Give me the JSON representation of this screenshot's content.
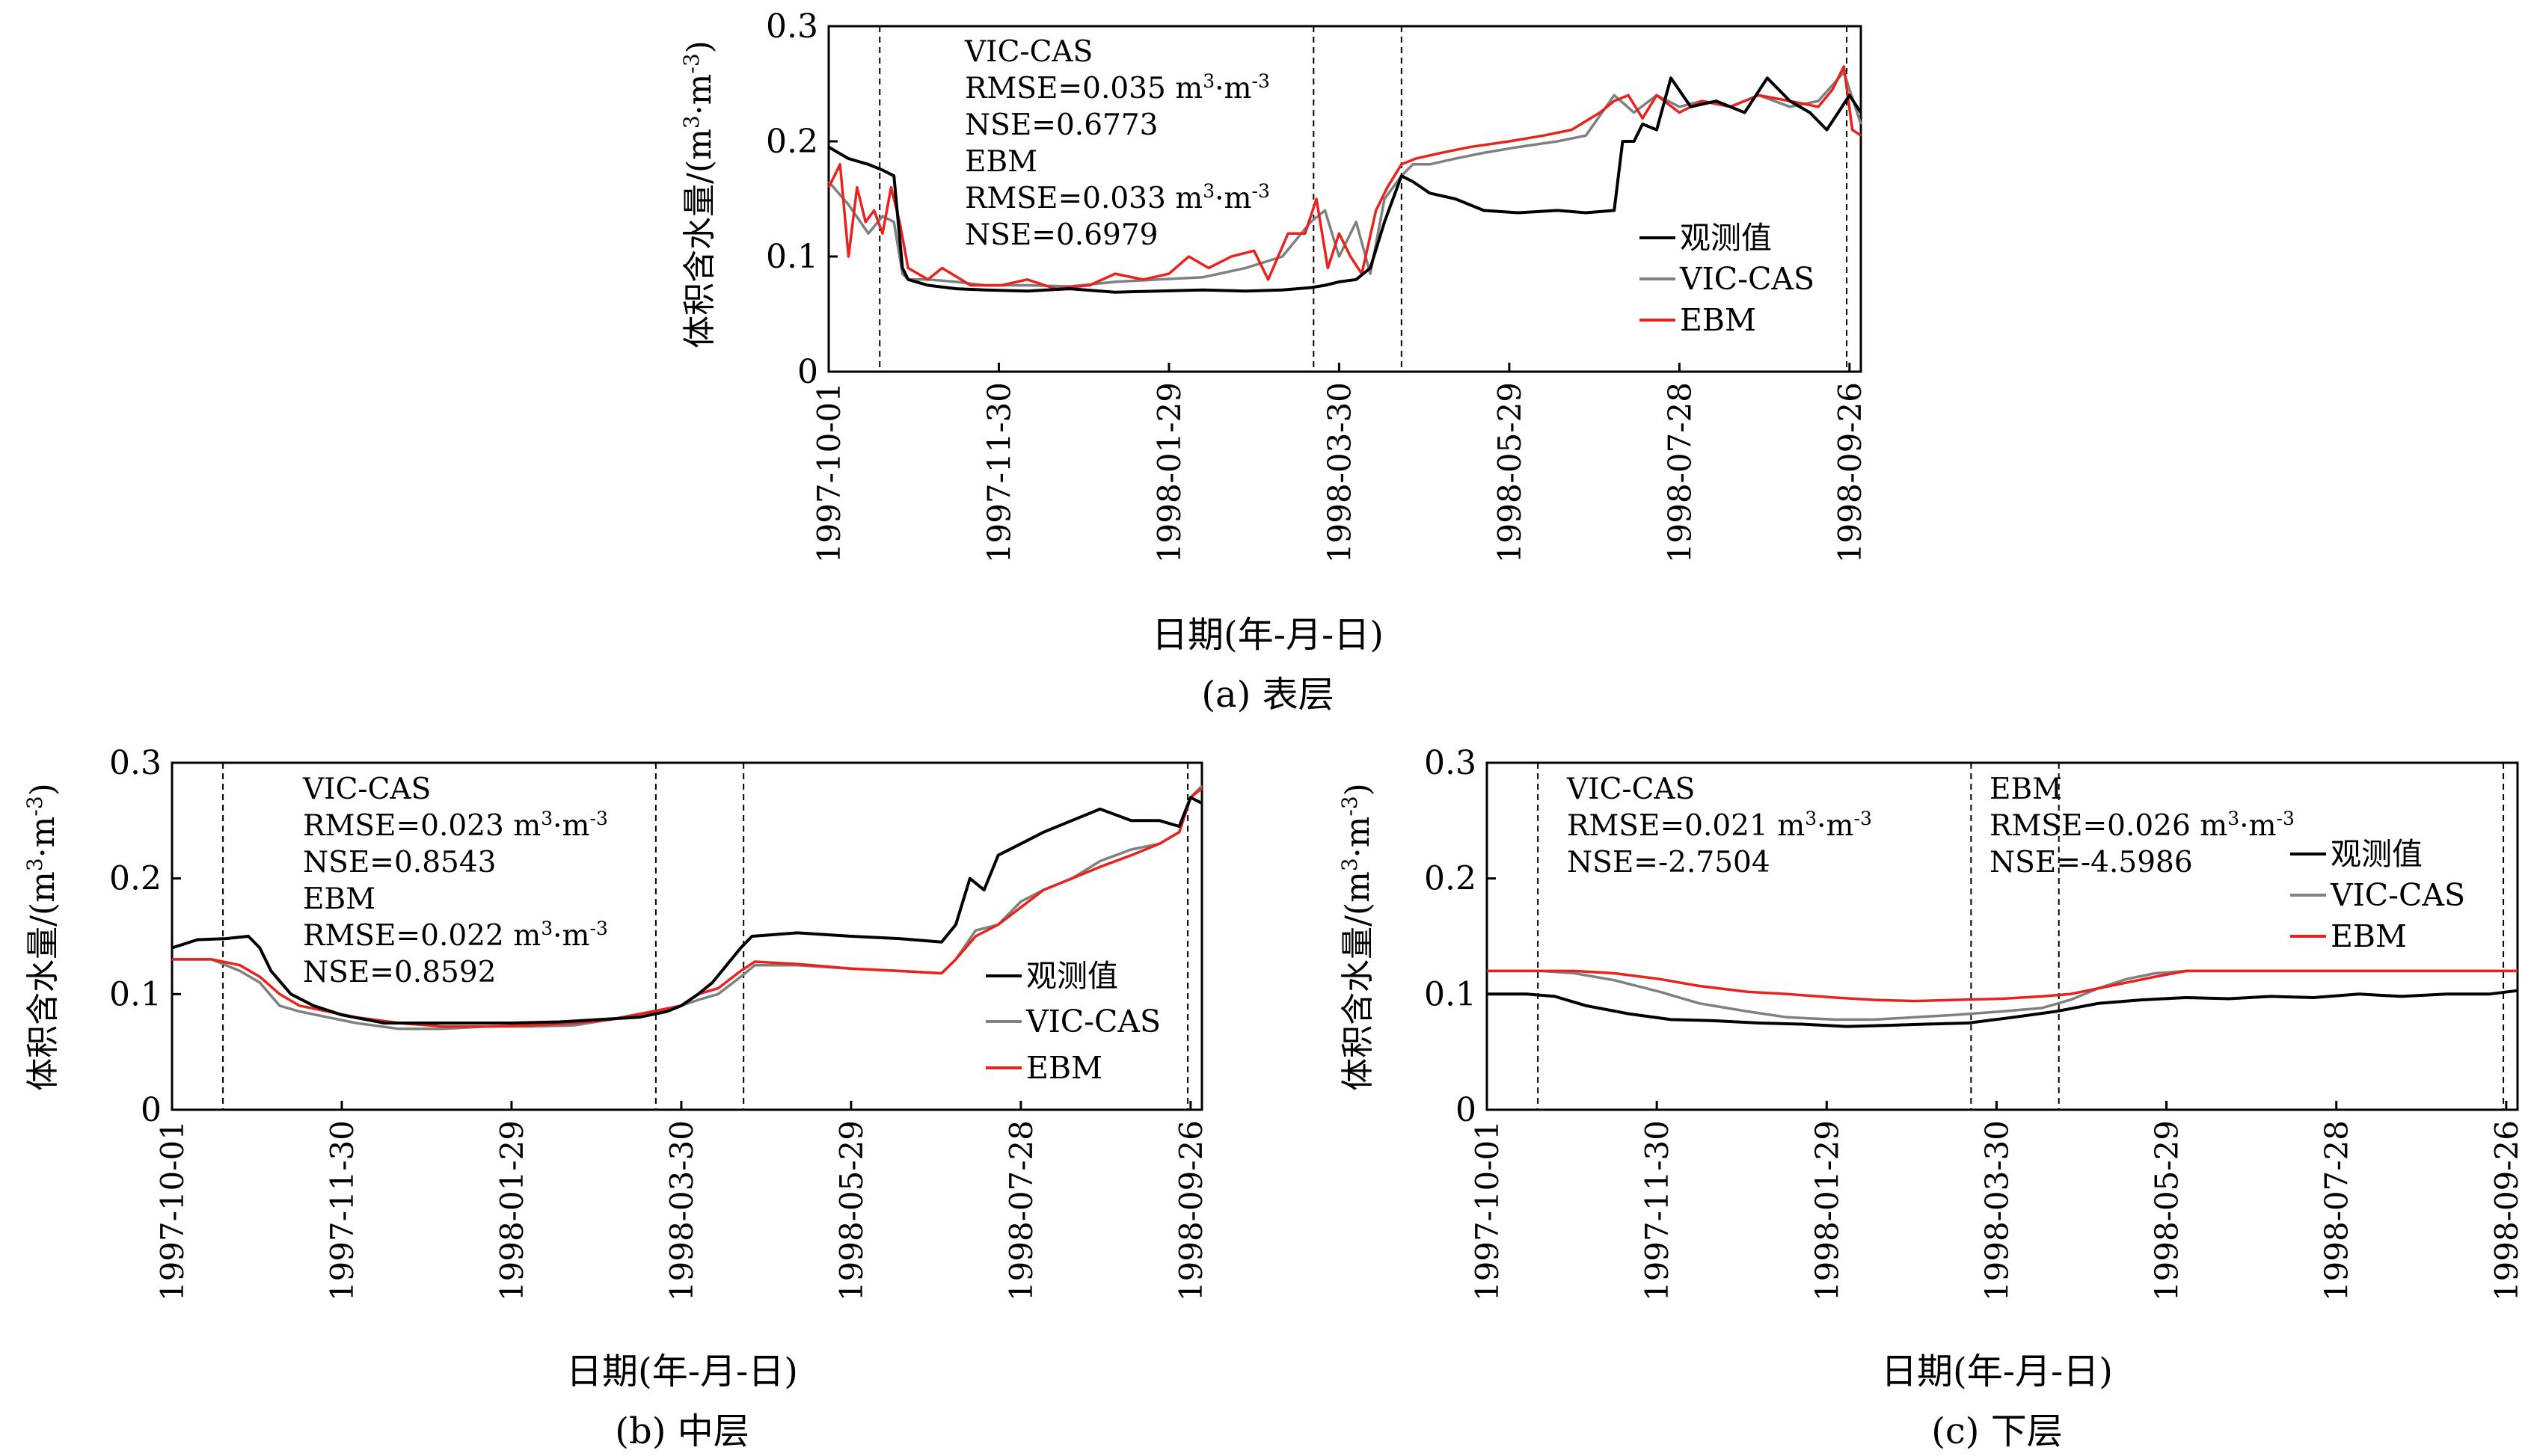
{
  "common": {
    "ylabel_prefix": "体积含水量/(m",
    "ylabel_sup1": "3",
    "ylabel_mid": "·m",
    "ylabel_sup2": "-3",
    "ylabel_suffix": ")",
    "xlabel": "日期(年-月-日)",
    "x_ticks": [
      "1997-10-01",
      "1997-11-30",
      "1998-01-29",
      "1998-03-30",
      "1998-05-29",
      "1998-07-28",
      "1998-09-26"
    ],
    "y_ticks": [
      "0",
      "0.1",
      "0.2",
      "0.3"
    ],
    "legend": [
      "观测值",
      "VIC-CAS",
      "EBM"
    ],
    "colors": {
      "obs": "#000000",
      "vic": "#808080",
      "ebm": "#e8231e"
    }
  },
  "panels": [
    {
      "caption": "(a) 表层",
      "stats": [
        {
          "model": "VIC-CAS",
          "rmse_prefix": "RMSE=0.035 m",
          "sup1": "3",
          "mid": "·m",
          "sup2": "-3",
          "nse": "NSE=0.6773"
        },
        {
          "model": "EBM",
          "rmse_prefix": "RMSE=0.033 m",
          "sup1": "3",
          "mid": "·m",
          "sup2": "-3",
          "nse": "NSE=0.6979"
        }
      ]
    },
    {
      "caption": "(b) 中层",
      "stats": [
        {
          "model": "VIC-CAS",
          "rmse_prefix": "RMSE=0.023 m",
          "sup1": "3",
          "mid": "·m",
          "sup2": "-3",
          "nse": "NSE=0.8543"
        },
        {
          "model": "EBM",
          "rmse_prefix": "RMSE=0.022 m",
          "sup1": "3",
          "mid": "·m",
          "sup2": "-3",
          "nse": "NSE=0.8592"
        }
      ]
    },
    {
      "caption": "(c) 下层",
      "stats": [
        {
          "model": "VIC-CAS",
          "rmse_prefix": "RMSE=0.021 m",
          "sup1": "3",
          "mid": "·m",
          "sup2": "-3",
          "nse": "NSE=-2.7504"
        },
        {
          "model": "EBM",
          "rmse_prefix": "RMSE=0.026 m",
          "sup1": "3",
          "mid": "·m",
          "sup2": "-3",
          "nse": "NSE=-4.5986"
        }
      ]
    }
  ],
  "chart_data": [
    {
      "type": "line",
      "panel": "(a) 表层",
      "x_unit": "date",
      "xlim": [
        "1997-10-01",
        "1998-09-30"
      ],
      "ylim": [
        0,
        0.3
      ],
      "vlines": [
        "1997-10-19",
        "1998-03-21",
        "1998-04-21",
        "1998-09-25"
      ],
      "series": [
        {
          "name": "观测值",
          "x": [
            "1997-10-01",
            "1997-10-08",
            "1997-10-15",
            "1997-10-20",
            "1997-10-24",
            "1997-10-27",
            "1997-10-29",
            "1997-11-05",
            "1997-11-15",
            "1997-11-25",
            "1997-12-10",
            "1997-12-25",
            "1998-01-10",
            "1998-01-25",
            "1998-02-10",
            "1998-02-25",
            "1998-03-10",
            "1998-03-20",
            "1998-03-25",
            "1998-03-30",
            "1998-04-05",
            "1998-04-10",
            "1998-04-15",
            "1998-04-21",
            "1998-04-25",
            "1998-05-01",
            "1998-05-10",
            "1998-05-20",
            "1998-06-01",
            "1998-06-15",
            "1998-06-25",
            "1998-07-05",
            "1998-07-08",
            "1998-07-12",
            "1998-07-15",
            "1998-07-20",
            "1998-07-25",
            "1998-08-01",
            "1998-08-10",
            "1998-08-20",
            "1998-08-28",
            "1998-09-05",
            "1998-09-12",
            "1998-09-18",
            "1998-09-22",
            "1998-09-26",
            "1998-09-30"
          ],
          "values": [
            0.195,
            0.185,
            0.18,
            0.175,
            0.17,
            0.09,
            0.08,
            0.075,
            0.072,
            0.071,
            0.07,
            0.072,
            0.069,
            0.07,
            0.071,
            0.07,
            0.071,
            0.073,
            0.075,
            0.078,
            0.08,
            0.09,
            0.13,
            0.17,
            0.165,
            0.155,
            0.15,
            0.14,
            0.138,
            0.14,
            0.138,
            0.14,
            0.2,
            0.2,
            0.215,
            0.21,
            0.255,
            0.23,
            0.235,
            0.225,
            0.255,
            0.235,
            0.225,
            0.21,
            0.225,
            0.24,
            0.225
          ]
        },
        {
          "name": "VIC-CAS",
          "x": [
            "1997-10-01",
            "1997-10-08",
            "1997-10-15",
            "1997-10-20",
            "1997-10-24",
            "1997-10-27",
            "1997-10-29",
            "1997-11-05",
            "1997-11-15",
            "1997-11-25",
            "1997-12-10",
            "1997-12-25",
            "1998-01-10",
            "1998-01-25",
            "1998-02-10",
            "1998-02-25",
            "1998-03-10",
            "1998-03-20",
            "1998-03-25",
            "1998-03-30",
            "1998-04-05",
            "1998-04-10",
            "1998-04-15",
            "1998-04-21",
            "1998-04-25",
            "1998-05-01",
            "1998-05-10",
            "1998-05-20",
            "1998-06-01",
            "1998-06-15",
            "1998-06-25",
            "1998-07-05",
            "1998-07-12",
            "1998-07-20",
            "1998-07-28",
            "1998-08-05",
            "1998-08-15",
            "1998-08-25",
            "1998-09-05",
            "1998-09-15",
            "1998-09-24",
            "1998-09-30"
          ],
          "values": [
            0.165,
            0.145,
            0.12,
            0.135,
            0.13,
            0.085,
            0.08,
            0.08,
            0.078,
            0.075,
            0.075,
            0.074,
            0.078,
            0.08,
            0.082,
            0.09,
            0.1,
            0.13,
            0.14,
            0.1,
            0.13,
            0.085,
            0.15,
            0.17,
            0.18,
            0.18,
            0.185,
            0.19,
            0.195,
            0.2,
            0.205,
            0.24,
            0.225,
            0.24,
            0.23,
            0.235,
            0.23,
            0.24,
            0.23,
            0.235,
            0.26,
            0.215
          ]
        },
        {
          "name": "EBM",
          "x": [
            "1997-10-01",
            "1997-10-05",
            "1997-10-08",
            "1997-10-11",
            "1997-10-14",
            "1997-10-17",
            "1997-10-20",
            "1997-10-23",
            "1997-10-26",
            "1997-10-29",
            "1997-11-05",
            "1997-11-10",
            "1997-11-20",
            "1997-12-01",
            "1997-12-10",
            "1997-12-20",
            "1998-01-01",
            "1998-01-10",
            "1998-01-20",
            "1998-01-29",
            "1998-02-05",
            "1998-02-12",
            "1998-02-20",
            "1998-02-28",
            "1998-03-05",
            "1998-03-12",
            "1998-03-18",
            "1998-03-22",
            "1998-03-26",
            "1998-03-30",
            "1998-04-03",
            "1998-04-07",
            "1998-04-12",
            "1998-04-16",
            "1998-04-21",
            "1998-04-26",
            "1998-05-05",
            "1998-05-15",
            "1998-05-29",
            "1998-06-10",
            "1998-06-20",
            "1998-06-30",
            "1998-07-05",
            "1998-07-10",
            "1998-07-15",
            "1998-07-20",
            "1998-07-28",
            "1998-08-05",
            "1998-08-15",
            "1998-08-25",
            "1998-09-05",
            "1998-09-15",
            "1998-09-20",
            "1998-09-24",
            "1998-09-27",
            "1998-09-30"
          ],
          "values": [
            0.16,
            0.18,
            0.1,
            0.16,
            0.13,
            0.14,
            0.12,
            0.16,
            0.13,
            0.09,
            0.08,
            0.09,
            0.075,
            0.075,
            0.08,
            0.072,
            0.075,
            0.085,
            0.08,
            0.085,
            0.1,
            0.09,
            0.1,
            0.105,
            0.08,
            0.12,
            0.12,
            0.15,
            0.09,
            0.12,
            0.1,
            0.085,
            0.14,
            0.16,
            0.18,
            0.185,
            0.19,
            0.195,
            0.2,
            0.205,
            0.21,
            0.225,
            0.235,
            0.24,
            0.22,
            0.24,
            0.225,
            0.235,
            0.23,
            0.24,
            0.235,
            0.23,
            0.245,
            0.265,
            0.21,
            0.205
          ]
        }
      ]
    },
    {
      "type": "line",
      "panel": "(b) 中层",
      "x_unit": "date",
      "xlim": [
        "1997-10-01",
        "1998-09-30"
      ],
      "ylim": [
        0,
        0.3
      ],
      "vlines": [
        "1997-10-19",
        "1998-03-21",
        "1998-04-21",
        "1998-09-25"
      ],
      "series": [
        {
          "name": "观测值",
          "x": [
            "1997-10-01",
            "1997-10-10",
            "1997-10-20",
            "1997-10-28",
            "1997-11-01",
            "1997-11-05",
            "1997-11-12",
            "1997-11-20",
            "1997-11-30",
            "1997-12-15",
            "1998-01-01",
            "1998-01-15",
            "1998-01-29",
            "1998-02-15",
            "1998-03-01",
            "1998-03-15",
            "1998-03-25",
            "1998-03-30",
            "1998-04-05",
            "1998-04-10",
            "1998-04-15",
            "1998-04-20",
            "1998-04-24",
            "1998-05-10",
            "1998-05-29",
            "1998-06-15",
            "1998-06-30",
            "1998-07-05",
            "1998-07-10",
            "1998-07-15",
            "1998-07-20",
            "1998-07-28",
            "1998-08-05",
            "1998-08-15",
            "1998-08-25",
            "1998-09-05",
            "1998-09-15",
            "1998-09-22",
            "1998-09-26",
            "1998-09-30"
          ],
          "values": [
            0.14,
            0.147,
            0.148,
            0.15,
            0.14,
            0.12,
            0.1,
            0.09,
            0.082,
            0.075,
            0.075,
            0.075,
            0.075,
            0.076,
            0.078,
            0.08,
            0.085,
            0.09,
            0.1,
            0.11,
            0.125,
            0.14,
            0.15,
            0.153,
            0.15,
            0.148,
            0.145,
            0.16,
            0.2,
            0.19,
            0.22,
            0.23,
            0.24,
            0.25,
            0.26,
            0.25,
            0.25,
            0.245,
            0.27,
            0.265
          ]
        },
        {
          "name": "VIC-CAS",
          "x": [
            "1997-10-01",
            "1997-10-15",
            "1997-10-25",
            "1997-11-01",
            "1997-11-08",
            "1997-11-15",
            "1997-11-25",
            "1997-12-05",
            "1997-12-20",
            "1998-01-05",
            "1998-01-20",
            "1998-02-05",
            "1998-02-20",
            "1998-03-05",
            "1998-03-20",
            "1998-03-30",
            "1998-04-05",
            "1998-04-12",
            "1998-04-20",
            "1998-04-25",
            "1998-05-10",
            "1998-05-29",
            "1998-06-15",
            "1998-06-30",
            "1998-07-05",
            "1998-07-12",
            "1998-07-20",
            "1998-07-28",
            "1998-08-05",
            "1998-08-15",
            "1998-08-25",
            "1998-09-05",
            "1998-09-15",
            "1998-09-22",
            "1998-09-26",
            "1998-09-30"
          ],
          "values": [
            0.13,
            0.13,
            0.12,
            0.11,
            0.09,
            0.085,
            0.08,
            0.075,
            0.07,
            0.07,
            0.072,
            0.072,
            0.073,
            0.078,
            0.085,
            0.09,
            0.095,
            0.1,
            0.115,
            0.125,
            0.125,
            0.122,
            0.12,
            0.118,
            0.13,
            0.155,
            0.16,
            0.18,
            0.19,
            0.2,
            0.215,
            0.225,
            0.23,
            0.24,
            0.27,
            0.28
          ]
        },
        {
          "name": "EBM",
          "x": [
            "1997-10-01",
            "1997-10-15",
            "1997-10-25",
            "1997-11-01",
            "1997-11-08",
            "1997-11-15",
            "1997-11-25",
            "1997-12-05",
            "1997-12-20",
            "1998-01-05",
            "1998-01-20",
            "1998-02-05",
            "1998-02-20",
            "1998-03-05",
            "1998-03-20",
            "1998-03-30",
            "1998-04-05",
            "1998-04-12",
            "1998-04-20",
            "1998-04-25",
            "1998-05-10",
            "1998-05-29",
            "1998-06-15",
            "1998-06-30",
            "1998-07-05",
            "1998-07-12",
            "1998-07-20",
            "1998-07-28",
            "1998-08-05",
            "1998-08-15",
            "1998-08-25",
            "1998-09-05",
            "1998-09-15",
            "1998-09-22",
            "1998-09-26",
            "1998-09-30"
          ],
          "values": [
            0.13,
            0.13,
            0.125,
            0.115,
            0.1,
            0.09,
            0.085,
            0.08,
            0.075,
            0.072,
            0.072,
            0.073,
            0.075,
            0.078,
            0.085,
            0.09,
            0.1,
            0.105,
            0.12,
            0.128,
            0.126,
            0.122,
            0.12,
            0.118,
            0.13,
            0.15,
            0.16,
            0.175,
            0.19,
            0.2,
            0.21,
            0.22,
            0.23,
            0.24,
            0.27,
            0.278
          ]
        }
      ]
    },
    {
      "type": "line",
      "panel": "(c) 下层",
      "x_unit": "date",
      "xlim": [
        "1997-10-01",
        "1998-09-30"
      ],
      "ylim": [
        0,
        0.3
      ],
      "vlines": [
        "1997-10-19",
        "1998-03-21",
        "1998-04-21",
        "1998-09-25"
      ],
      "series": [
        {
          "name": "观测值",
          "x": [
            "1997-10-01",
            "1997-10-15",
            "1997-10-25",
            "1997-11-05",
            "1997-11-20",
            "1997-12-05",
            "1997-12-20",
            "1998-01-05",
            "1998-01-20",
            "1998-02-05",
            "1998-02-20",
            "1998-03-05",
            "1998-03-20",
            "1998-04-05",
            "1998-04-20",
            "1998-05-05",
            "1998-05-20",
            "1998-06-05",
            "1998-06-20",
            "1998-07-05",
            "1998-07-20",
            "1998-08-05",
            "1998-08-20",
            "1998-09-05",
            "1998-09-20",
            "1998-09-30"
          ],
          "values": [
            0.1,
            0.1,
            0.098,
            0.09,
            0.083,
            0.078,
            0.077,
            0.075,
            0.074,
            0.072,
            0.073,
            0.074,
            0.075,
            0.08,
            0.085,
            0.092,
            0.095,
            0.097,
            0.096,
            0.098,
            0.097,
            0.1,
            0.098,
            0.1,
            0.1,
            0.103
          ]
        },
        {
          "name": "VIC-CAS",
          "x": [
            "1997-10-01",
            "1997-10-20",
            "1997-11-01",
            "1997-11-15",
            "1997-12-01",
            "1997-12-15",
            "1998-01-01",
            "1998-01-15",
            "1998-02-01",
            "1998-02-15",
            "1998-03-01",
            "1998-03-15",
            "1998-04-01",
            "1998-04-15",
            "1998-04-25",
            "1998-05-05",
            "1998-05-15",
            "1998-05-25",
            "1998-06-05",
            "1998-06-20",
            "1998-07-10",
            "1998-08-01",
            "1998-09-01",
            "1998-09-30"
          ],
          "values": [
            0.12,
            0.12,
            0.118,
            0.112,
            0.102,
            0.092,
            0.085,
            0.08,
            0.078,
            0.078,
            0.08,
            0.082,
            0.085,
            0.088,
            0.095,
            0.105,
            0.113,
            0.118,
            0.12,
            0.12,
            0.12,
            0.12,
            0.12,
            0.12
          ]
        },
        {
          "name": "EBM",
          "x": [
            "1997-10-01",
            "1997-10-20",
            "1997-11-01",
            "1997-11-15",
            "1997-12-01",
            "1997-12-15",
            "1998-01-01",
            "1998-01-15",
            "1998-02-01",
            "1998-02-15",
            "1998-03-01",
            "1998-03-15",
            "1998-04-01",
            "1998-04-15",
            "1998-04-25",
            "1998-05-05",
            "1998-05-15",
            "1998-05-25",
            "1998-06-05",
            "1998-06-20",
            "1998-07-10",
            "1998-08-01",
            "1998-09-01",
            "1998-09-30"
          ],
          "values": [
            0.12,
            0.12,
            0.12,
            0.118,
            0.113,
            0.107,
            0.102,
            0.1,
            0.097,
            0.095,
            0.094,
            0.095,
            0.096,
            0.098,
            0.1,
            0.105,
            0.11,
            0.115,
            0.12,
            0.12,
            0.12,
            0.12,
            0.12,
            0.12
          ]
        }
      ]
    }
  ]
}
